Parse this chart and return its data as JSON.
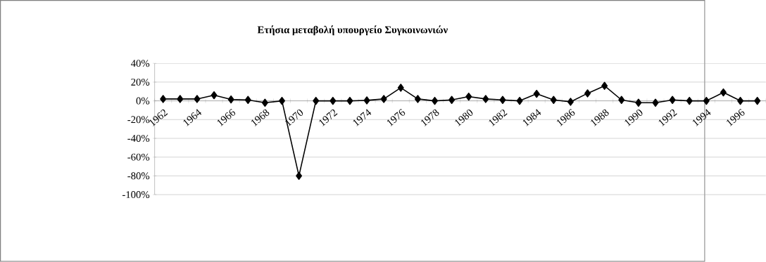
{
  "chart_data": {
    "type": "line",
    "title": "Ετήσια μεταβολή υπουργείο Συγκοινωνιών",
    "categories": [
      "1962",
      null,
      "1964",
      null,
      "1966",
      null,
      "1968",
      null,
      "1970",
      null,
      "1972",
      null,
      "1974",
      null,
      "1976",
      null,
      "1978",
      null,
      "1980",
      null,
      "1982",
      null,
      "1984",
      null,
      "1986",
      null,
      "1988",
      null,
      "1990",
      null,
      "1992",
      null,
      "1994",
      null,
      "1996",
      null
    ],
    "series": [
      {
        "color": "#000000",
        "values": [
          2,
          2,
          2,
          6,
          1.5,
          1,
          -2,
          0,
          -80,
          0,
          0,
          0,
          0.5,
          2,
          14,
          2,
          0,
          1,
          4.5,
          2,
          1,
          0,
          7.5,
          1,
          -1,
          8,
          16,
          1,
          -2,
          -2,
          1,
          0,
          0,
          9,
          0,
          0
        ]
      }
    ],
    "ylim": [
      -100,
      40
    ],
    "yticks": [
      {
        "value": 40,
        "label": "40%"
      },
      {
        "value": 20,
        "label": "20%"
      },
      {
        "value": 0,
        "label": "0%"
      },
      {
        "value": -20,
        "label": "-20%"
      },
      {
        "value": -40,
        "label": "-40%"
      },
      {
        "value": -60,
        "label": "-60%"
      },
      {
        "value": -80,
        "label": "-80%"
      },
      {
        "value": -100,
        "label": "-100%"
      }
    ],
    "grid": "y",
    "marker": "diamond",
    "line_style": "solid"
  }
}
